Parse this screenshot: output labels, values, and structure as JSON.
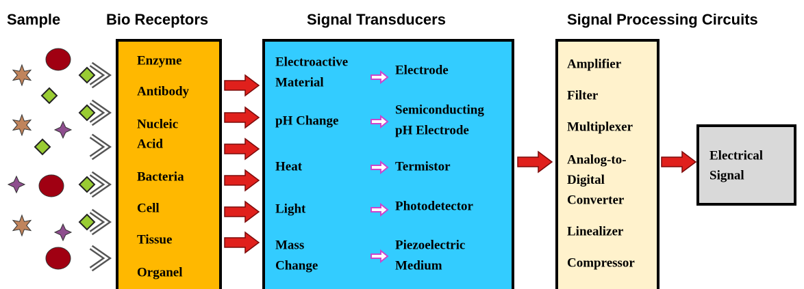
{
  "headings": [
    "Sample",
    "Bio Receptors",
    "Signal Transducers",
    "Signal Processing Circuits"
  ],
  "bio_receptors": [
    [
      "Enzyme"
    ],
    [
      "Antibody"
    ],
    [
      "Nucleic",
      "Acid"
    ],
    [
      "Bacteria"
    ],
    [
      "Cell"
    ],
    [
      "Tissue"
    ],
    [
      "Organel"
    ]
  ],
  "transducers": [
    {
      "input": [
        "Electroactive",
        "Material"
      ],
      "output": [
        "Electrode"
      ]
    },
    {
      "input": [
        "pH Change"
      ],
      "output": [
        "Semiconducting",
        "pH Electrode"
      ]
    },
    {
      "input": [
        "Heat"
      ],
      "output": [
        "Termistor"
      ]
    },
    {
      "input": [
        "Light"
      ],
      "output": [
        "Photodetector"
      ]
    },
    {
      "input": [
        "Mass",
        "Change"
      ],
      "output": [
        "Piezoelectric",
        "Medium"
      ]
    }
  ],
  "processing": [
    [
      "Amplifier"
    ],
    [
      "Filter"
    ],
    [
      "Multiplexer"
    ],
    [
      "Analog-to-",
      "Digital",
      "Converter"
    ],
    [
      "Linealizer"
    ],
    [
      "Compressor"
    ]
  ],
  "output": [
    "Electrical",
    "Signal"
  ]
}
